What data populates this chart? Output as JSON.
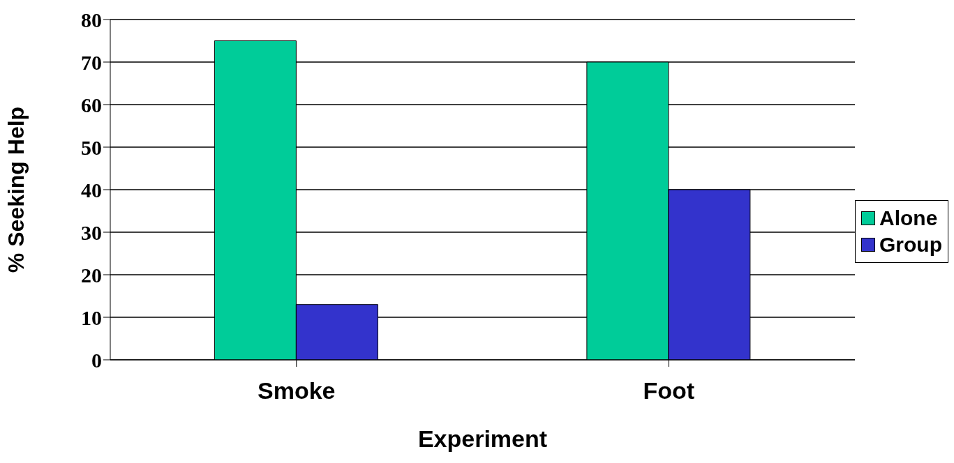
{
  "chart_data": {
    "type": "bar",
    "xlabel": "Experiment",
    "ylabel": "% Seeking Help",
    "categories": [
      "Smoke",
      "Foot"
    ],
    "series": [
      {
        "name": "Alone",
        "color": "#00cc99",
        "values": [
          75,
          70
        ]
      },
      {
        "name": "Group",
        "color": "#3333cc",
        "values": [
          13,
          40
        ]
      }
    ],
    "ylim": [
      0,
      80
    ],
    "yticks": [
      0,
      10,
      20,
      30,
      40,
      50,
      60,
      70,
      80
    ],
    "grid": "y",
    "legend": "right"
  }
}
